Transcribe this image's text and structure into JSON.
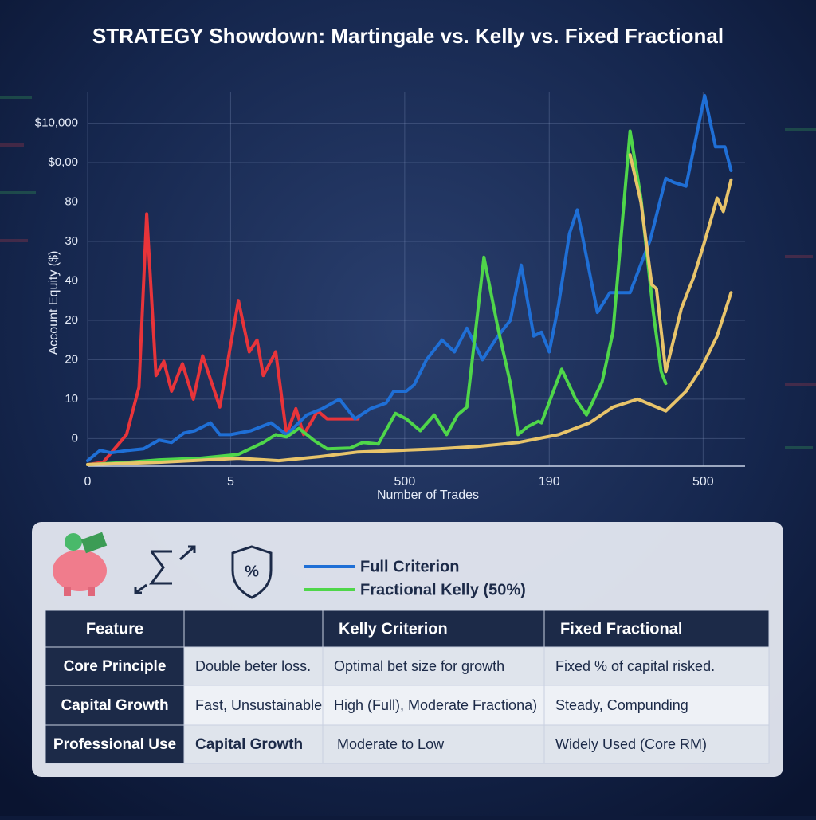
{
  "chart_data": {
    "type": "line",
    "title": "STRATEGY Showdown: Martingale vs. Kelly vs. Fixed Fractional",
    "x_label": "Number of Trades",
    "y_label": "Account Equity ($)",
    "xlim": [
      0,
      4.23
    ],
    "xticks": [
      0,
      {
        "value": 0.92,
        "label": "5"
      },
      {
        "value": 2.04,
        "label": "500"
      },
      {
        "value": 2.97,
        "label": "190"
      },
      {
        "value": 3.96,
        "label": "500"
      }
    ],
    "ylim": [
      -7,
      88
    ],
    "yticks": [
      0,
      10,
      20,
      {
        "value": 30,
        "label": "20"
      },
      40,
      {
        "value": 50,
        "label": "30"
      },
      {
        "value": 60,
        "label": "80"
      },
      {
        "value": 70,
        "label": "$0,00"
      },
      {
        "value": 80,
        "label": "$10,000"
      }
    ],
    "grid": true,
    "series": [
      {
        "color": "#e8343a",
        "x": [
          0,
          0.1,
          0.25,
          0.33,
          0.38,
          0.44,
          0.49,
          0.54,
          0.61,
          0.68,
          0.74,
          0.85,
          0.97,
          1.04,
          1.09,
          1.13,
          1.21,
          1.28,
          1.34,
          1.39,
          1.48,
          1.54,
          1.74
        ],
        "values": [
          -6.6,
          -6,
          1,
          13,
          57,
          16,
          19.6,
          12,
          19,
          10,
          21,
          8,
          35,
          22,
          25,
          16,
          22,
          1,
          7.6,
          1,
          7,
          5,
          5
        ]
      },
      {
        "name": "Full Criterion",
        "color": "#1f6fd6",
        "x": [
          0,
          0.08,
          0.15,
          0.26,
          0.36,
          0.46,
          0.54,
          0.62,
          0.69,
          0.79,
          0.85,
          0.92,
          1.05,
          1.18,
          1.28,
          1.41,
          1.51,
          1.62,
          1.72,
          1.82,
          1.92,
          1.97,
          2.05,
          2.1,
          2.18,
          2.28,
          2.36,
          2.44,
          2.54,
          2.64,
          2.72,
          2.79,
          2.87,
          2.92,
          2.97,
          3.03,
          3.1,
          3.15,
          3.24,
          3.28,
          3.36,
          3.49,
          3.62,
          3.72,
          3.77,
          3.85,
          3.97,
          4.04,
          4.1,
          4.14
        ],
        "values": [
          -5.6,
          -3,
          -3.6,
          -3,
          -2.6,
          -0.4,
          -1,
          1.4,
          2,
          4,
          1,
          1,
          2,
          4,
          1,
          6,
          7.6,
          10,
          5,
          7.6,
          9,
          12,
          12,
          13.6,
          20,
          25,
          22,
          28,
          20,
          26,
          30,
          44,
          26,
          27,
          22,
          34,
          52,
          58,
          40,
          32,
          37,
          37,
          50.4,
          66,
          65,
          64,
          87,
          74,
          74,
          68
        ]
      },
      {
        "name": "Fractional Kelly (50%)",
        "color": "#4fd64a",
        "x": [
          0,
          0.26,
          0.46,
          0.72,
          0.97,
          1.13,
          1.21,
          1.28,
          1.36,
          1.46,
          1.54,
          1.69,
          1.77,
          1.87,
          1.98,
          2.05,
          2.14,
          2.23,
          2.31,
          2.38,
          2.44,
          2.55,
          2.64,
          2.72,
          2.77,
          2.83,
          2.9,
          2.92,
          3.05,
          3.14,
          3.21,
          3.31,
          3.38,
          3.49,
          3.56,
          3.64,
          3.69,
          3.72
        ],
        "values": [
          -6.6,
          -6,
          -5.4,
          -5,
          -4,
          -1,
          1,
          0.4,
          2.6,
          -0.6,
          -2.6,
          -2.4,
          -1,
          -1.4,
          6.4,
          5,
          2,
          6,
          1,
          6,
          8,
          46,
          28,
          14,
          1,
          3,
          4.4,
          4,
          17.6,
          10,
          6,
          14.4,
          27,
          78,
          61,
          32,
          17,
          14
        ]
      },
      {
        "color": "#e8c46a",
        "x": [
          0,
          0.46,
          0.97,
          1.23,
          1.49,
          1.74,
          2,
          2.26,
          2.51,
          2.77,
          3.03,
          3.23,
          3.38,
          3.54,
          3.72,
          3.85,
          3.95,
          4.05,
          4.14
        ],
        "values": [
          -6.6,
          -6,
          -5,
          -5.6,
          -4.6,
          -3.4,
          -3,
          -2.6,
          -2,
          -1,
          1,
          4,
          8,
          10,
          7,
          12,
          18,
          26,
          37
        ]
      },
      {
        "color": "#e8c46a",
        "x": [
          3.49,
          3.56,
          3.63,
          3.66,
          3.72,
          3.82,
          3.9,
          3.97,
          4.05,
          4.09,
          4.14
        ],
        "values": [
          72,
          60,
          39,
          38,
          17,
          33,
          41,
          50,
          61,
          57.6,
          65.6
        ]
      }
    ]
  },
  "table": {
    "headers": [
      "Feature",
      null,
      "Kelly Criterion",
      "Fixed Fractional"
    ],
    "rows": [
      [
        "Core Principle",
        "Double beter loss.",
        "Optimal bet size for growth",
        "Fixed % of capital risked."
      ],
      [
        "Capital Growth",
        "Fast, Unsustainable",
        "High (Full), Moderate Fractiona)",
        "Steady, Compunding"
      ],
      [
        "Professional Use",
        "Capital Growth",
        "Moderate to Low",
        "Widely Used (Core RM)"
      ]
    ]
  }
}
